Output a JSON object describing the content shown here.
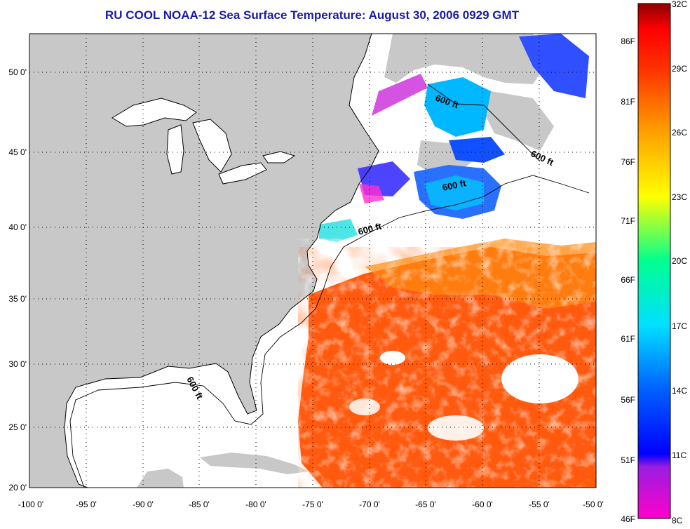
{
  "title": "RU COOL  NOAA-12  Sea Surface Temperature:  August 30, 2006 0929 GMT",
  "map": {
    "lon_range": [
      -100,
      -50
    ],
    "lat_range": [
      20,
      52.5
    ],
    "lon_ticks": [
      "-100 0'",
      "-95 0'",
      "-90 0'",
      "-85 0'",
      "-80 0'",
      "-75 0'",
      "-70 0'",
      "-65 0'",
      "-60 0'",
      "-55 0'",
      "-50 0'"
    ],
    "lat_ticks": [
      "20 0'",
      "25 0'",
      "30 0'",
      "35 0'",
      "40 0'",
      "45 0'",
      "50 0'"
    ],
    "depth_labels": [
      "600 ft",
      "600 ft",
      "600 ft",
      "600 ft",
      "600 ft"
    ],
    "land_color": "#c8c8c8",
    "cloud_color": "#ffffff"
  },
  "colorbar": {
    "celsius_labels": [
      "32C",
      "29C",
      "26C",
      "23C",
      "20C",
      "17C",
      "14C",
      "11C",
      "8C"
    ],
    "fahrenheit_labels": [
      "86F",
      "81F",
      "76F",
      "71F",
      "66F",
      "61F",
      "56F",
      "51F",
      "46F"
    ],
    "celsius_range": [
      8,
      32
    ],
    "colors": [
      "#ff00cc",
      "#9a1ee0",
      "#0000ff",
      "#0060ff",
      "#00e0ff",
      "#00ff90",
      "#ffff00",
      "#ffa000",
      "#ff3000",
      "#ff0000",
      "#8c0000"
    ]
  }
}
